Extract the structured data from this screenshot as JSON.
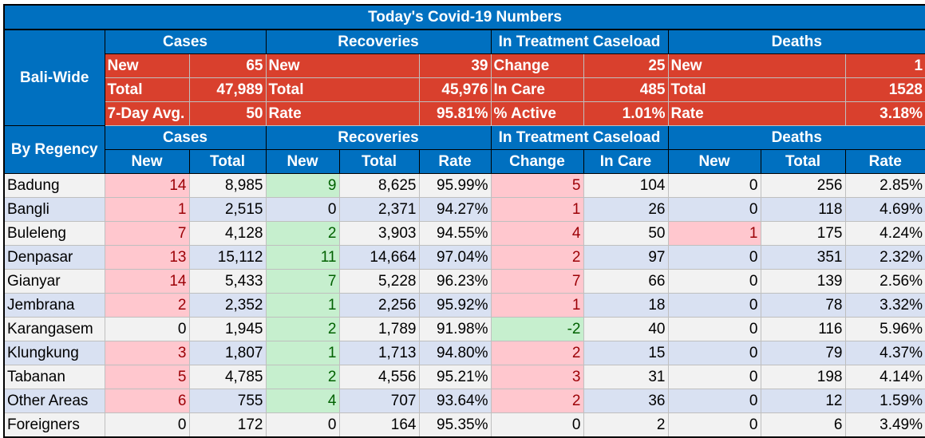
{
  "title": "Today's Covid-19 Numbers",
  "bali_wide": {
    "label": "Bali-Wide",
    "groups": [
      "Cases",
      "Recoveries",
      "In Treatment Caseload",
      "Deaths"
    ],
    "rows": [
      [
        [
          "New",
          "65"
        ],
        [
          "New",
          "39"
        ],
        [
          "Change",
          "25"
        ],
        [
          "New",
          "1"
        ]
      ],
      [
        [
          "Total",
          "47,989"
        ],
        [
          "Total",
          "45,976"
        ],
        [
          "In Care",
          "485"
        ],
        [
          "Total",
          "1528"
        ]
      ],
      [
        [
          "7-Day Avg.",
          "50"
        ],
        [
          "Rate",
          "95.81%"
        ],
        [
          "% Active",
          "1.01%"
        ],
        [
          "Rate",
          "3.18%"
        ]
      ]
    ]
  },
  "by_regency": {
    "label": "By Regency",
    "groups": [
      "Cases",
      "Recoveries",
      "In Treatment Caseload",
      "Deaths"
    ],
    "columns": [
      "New",
      "Total",
      "New",
      "Total",
      "Rate",
      "Change",
      "In Care",
      "New",
      "Total",
      "Rate"
    ],
    "rows": [
      {
        "name": "Badung",
        "cells": [
          "14",
          "8,985",
          "9",
          "8,625",
          "95.99%",
          "5",
          "104",
          "0",
          "256",
          "2.85%"
        ],
        "hl": [
          "pos",
          "",
          "grn",
          "",
          "",
          "pos",
          "",
          "",
          "",
          ""
        ]
      },
      {
        "name": "Bangli",
        "cells": [
          "1",
          "2,515",
          "0",
          "2,371",
          "94.27%",
          "1",
          "26",
          "0",
          "118",
          "4.69%"
        ],
        "hl": [
          "pos",
          "",
          "",
          "",
          "",
          "pos",
          "",
          "",
          "",
          ""
        ]
      },
      {
        "name": "Buleleng",
        "cells": [
          "7",
          "4,128",
          "2",
          "3,903",
          "94.55%",
          "4",
          "50",
          "1",
          "175",
          "4.24%"
        ],
        "hl": [
          "pos",
          "",
          "grn",
          "",
          "",
          "pos",
          "",
          "pos",
          "",
          ""
        ]
      },
      {
        "name": "Denpasar",
        "cells": [
          "13",
          "15,112",
          "11",
          "14,664",
          "97.04%",
          "2",
          "97",
          "0",
          "351",
          "2.32%"
        ],
        "hl": [
          "pos",
          "",
          "grn",
          "",
          "",
          "pos",
          "",
          "",
          "",
          ""
        ]
      },
      {
        "name": "Gianyar",
        "cells": [
          "14",
          "5,433",
          "7",
          "5,228",
          "96.23%",
          "7",
          "66",
          "0",
          "139",
          "2.56%"
        ],
        "hl": [
          "pos",
          "",
          "grn",
          "",
          "",
          "pos",
          "",
          "",
          "",
          ""
        ]
      },
      {
        "name": "Jembrana",
        "cells": [
          "2",
          "2,352",
          "1",
          "2,256",
          "95.92%",
          "1",
          "18",
          "0",
          "78",
          "3.32%"
        ],
        "hl": [
          "pos",
          "",
          "grn",
          "",
          "",
          "pos",
          "",
          "",
          "",
          ""
        ]
      },
      {
        "name": "Karangasem",
        "cells": [
          "0",
          "1,945",
          "2",
          "1,789",
          "91.98%",
          "-2",
          "40",
          "0",
          "116",
          "5.96%"
        ],
        "hl": [
          "",
          "",
          "grn",
          "",
          "",
          "grn",
          "",
          "",
          "",
          ""
        ]
      },
      {
        "name": "Klungkung",
        "cells": [
          "3",
          "1,807",
          "1",
          "1,713",
          "94.80%",
          "2",
          "15",
          "0",
          "79",
          "4.37%"
        ],
        "hl": [
          "pos",
          "",
          "grn",
          "",
          "",
          "pos",
          "",
          "",
          "",
          ""
        ]
      },
      {
        "name": "Tabanan",
        "cells": [
          "5",
          "4,785",
          "2",
          "4,556",
          "95.21%",
          "3",
          "31",
          "0",
          "198",
          "4.14%"
        ],
        "hl": [
          "pos",
          "",
          "grn",
          "",
          "",
          "pos",
          "",
          "",
          "",
          ""
        ]
      },
      {
        "name": "Other Areas",
        "cells": [
          "6",
          "755",
          "4",
          "707",
          "93.64%",
          "2",
          "36",
          "0",
          "12",
          "1.59%"
        ],
        "hl": [
          "pos",
          "",
          "grn",
          "",
          "",
          "pos",
          "",
          "",
          "",
          ""
        ]
      },
      {
        "name": "Foreigners",
        "cells": [
          "0",
          "172",
          "0",
          "164",
          "95.35%",
          "0",
          "2",
          "0",
          "6",
          "3.49%"
        ],
        "hl": [
          "",
          "",
          "",
          "",
          "",
          "",
          "",
          "",
          "",
          ""
        ]
      }
    ]
  }
}
